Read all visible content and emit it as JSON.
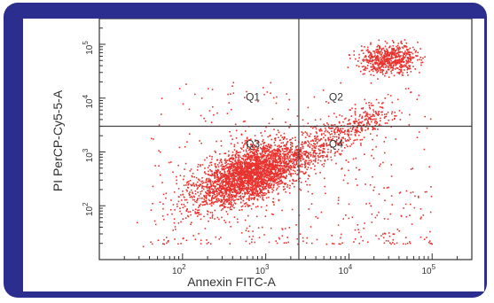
{
  "colors": {
    "frame": "#2b2e8f",
    "events": "#e8332f",
    "gate_lines": "#444444",
    "axis": "#333333"
  },
  "chart_data": {
    "type": "scatter",
    "title": "",
    "xlabel": "Annexin FITC-A",
    "ylabel": "PI PerCP-Cy5-5-A",
    "x_scale": "log",
    "y_scale": "log",
    "xlim": [
      10,
      300000
    ],
    "ylim": [
      10,
      300000
    ],
    "x_ticks": [
      {
        "value": 100,
        "base": "10",
        "exp": "2"
      },
      {
        "value": 1000,
        "base": "10",
        "exp": "3"
      },
      {
        "value": 10000,
        "base": "10",
        "exp": "4"
      },
      {
        "value": 100000,
        "base": "10",
        "exp": "5"
      }
    ],
    "y_ticks": [
      {
        "value": 100,
        "base": "10",
        "exp": "2"
      },
      {
        "value": 1000,
        "base": "10",
        "exp": "3"
      },
      {
        "value": 10000,
        "base": "10",
        "exp": "4"
      },
      {
        "value": 100000,
        "base": "10",
        "exp": "5"
      }
    ],
    "gates": {
      "x": 2500,
      "y": 3000
    },
    "quadrants": [
      {
        "label": "Q1",
        "x": 700,
        "y": 9000
      },
      {
        "label": "Q2",
        "x": 7000,
        "y": 9000
      },
      {
        "label": "Q3",
        "x": 700,
        "y": 1200
      },
      {
        "label": "Q4",
        "x": 7000,
        "y": 1200
      }
    ],
    "populations": [
      {
        "name": "viable",
        "center_x": 650,
        "center_y": 400,
        "log_spread_x": 0.33,
        "log_spread_y": 0.3,
        "correlation": 0.55,
        "events": 3000
      },
      {
        "name": "late apoptotic",
        "center_x": 30000,
        "center_y": 55000,
        "log_spread_x": 0.17,
        "log_spread_y": 0.13,
        "correlation": 0.1,
        "events": 650
      },
      {
        "name": "apoptotic tail",
        "from_x": 2000,
        "from_y": 700,
        "to_x": 25000,
        "to_y": 6000,
        "events": 500
      },
      {
        "name": "background",
        "events": 500
      }
    ]
  }
}
